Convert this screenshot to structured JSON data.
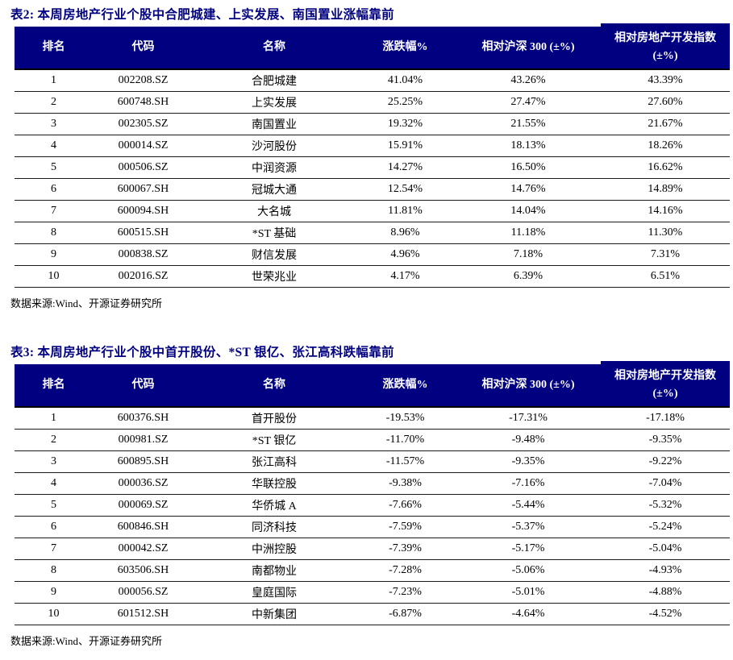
{
  "colors": {
    "navy": "#000080",
    "header_text": "#ffffff",
    "body_text": "#000000",
    "row_line": "#1a1a1a"
  },
  "tables": [
    {
      "title": "表2: 本周房地产行业个股中合肥城建、上实发展、南国置业涨幅靠前",
      "source": "数据来源:Wind、开源证券研究所",
      "columns": [
        {
          "key": "rank",
          "label": "排名"
        },
        {
          "key": "code",
          "label": "代码"
        },
        {
          "key": "name",
          "label": "名称"
        },
        {
          "key": "change",
          "label": "涨跌幅%"
        },
        {
          "key": "rel-hs300",
          "label": "相对沪深 300 (±%)"
        },
        {
          "key": "rel-re-index",
          "label": "相对房地产开发指数",
          "label_line2": "(±%)"
        }
      ],
      "rows": [
        [
          "1",
          "002208.SZ",
          "合肥城建",
          "41.04%",
          "43.26%",
          "43.39%"
        ],
        [
          "2",
          "600748.SH",
          "上实发展",
          "25.25%",
          "27.47%",
          "27.60%"
        ],
        [
          "3",
          "002305.SZ",
          "南国置业",
          "19.32%",
          "21.55%",
          "21.67%"
        ],
        [
          "4",
          "000014.SZ",
          "沙河股份",
          "15.91%",
          "18.13%",
          "18.26%"
        ],
        [
          "5",
          "000506.SZ",
          "中润资源",
          "14.27%",
          "16.50%",
          "16.62%"
        ],
        [
          "6",
          "600067.SH",
          "冠城大通",
          "12.54%",
          "14.76%",
          "14.89%"
        ],
        [
          "7",
          "600094.SH",
          "大名城",
          "11.81%",
          "14.04%",
          "14.16%"
        ],
        [
          "8",
          "600515.SH",
          "*ST 基础",
          "8.96%",
          "11.18%",
          "11.30%"
        ],
        [
          "9",
          "000838.SZ",
          "财信发展",
          "4.96%",
          "7.18%",
          "7.31%"
        ],
        [
          "10",
          "002016.SZ",
          "世荣兆业",
          "4.17%",
          "6.39%",
          "6.51%"
        ]
      ]
    },
    {
      "title": "表3: 本周房地产行业个股中首开股份、*ST 银亿、张江高科跌幅靠前",
      "source": "数据来源:Wind、开源证券研究所",
      "columns": [
        {
          "key": "rank",
          "label": "排名"
        },
        {
          "key": "code",
          "label": "代码"
        },
        {
          "key": "name",
          "label": "名称"
        },
        {
          "key": "change",
          "label": "涨跌幅%"
        },
        {
          "key": "rel-hs300",
          "label": "相对沪深 300 (±%)"
        },
        {
          "key": "rel-re-index",
          "label": "相对房地产开发指数",
          "label_line2": "(±%)"
        }
      ],
      "rows": [
        [
          "1",
          "600376.SH",
          "首开股份",
          "-19.53%",
          "-17.31%",
          "-17.18%"
        ],
        [
          "2",
          "000981.SZ",
          "*ST 银亿",
          "-11.70%",
          "-9.48%",
          "-9.35%"
        ],
        [
          "3",
          "600895.SH",
          "张江高科",
          "-11.57%",
          "-9.35%",
          "-9.22%"
        ],
        [
          "4",
          "000036.SZ",
          "华联控股",
          "-9.38%",
          "-7.16%",
          "-7.04%"
        ],
        [
          "5",
          "000069.SZ",
          "华侨城 A",
          "-7.66%",
          "-5.44%",
          "-5.32%"
        ],
        [
          "6",
          "600846.SH",
          "同济科技",
          "-7.59%",
          "-5.37%",
          "-5.24%"
        ],
        [
          "7",
          "000042.SZ",
          "中洲控股",
          "-7.39%",
          "-5.17%",
          "-5.04%"
        ],
        [
          "8",
          "603506.SH",
          "南都物业",
          "-7.28%",
          "-5.06%",
          "-4.93%"
        ],
        [
          "9",
          "000056.SZ",
          "皇庭国际",
          "-7.23%",
          "-5.01%",
          "-4.88%"
        ],
        [
          "10",
          "601512.SH",
          "中新集团",
          "-6.87%",
          "-4.64%",
          "-4.52%"
        ]
      ]
    }
  ]
}
